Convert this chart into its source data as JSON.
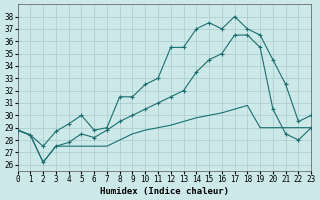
{
  "xlabel": "Humidex (Indice chaleur)",
  "ylabel": "",
  "background_color": "#cce8e8",
  "grid_color": "#aacccc",
  "line_color": "#1a7070",
  "xlim": [
    0,
    23
  ],
  "ylim": [
    25.5,
    39
  ],
  "yticks": [
    26,
    27,
    28,
    29,
    30,
    31,
    32,
    33,
    34,
    35,
    36,
    37,
    38
  ],
  "xticks": [
    0,
    1,
    2,
    3,
    4,
    5,
    6,
    7,
    8,
    9,
    10,
    11,
    12,
    13,
    14,
    15,
    16,
    17,
    18,
    19,
    20,
    21,
    22,
    23
  ],
  "series1_x": [
    0,
    1,
    2,
    3,
    4,
    5,
    6,
    7,
    8,
    9,
    10,
    11,
    12,
    13,
    14,
    15,
    16,
    17,
    18,
    19,
    20,
    21,
    22,
    23
  ],
  "series1_y": [
    28.8,
    28.4,
    27.5,
    28.7,
    29.3,
    30.0,
    28.8,
    29.0,
    31.5,
    31.5,
    32.5,
    33.0,
    35.5,
    35.5,
    37.0,
    37.5,
    37.0,
    38.0,
    37.0,
    36.5,
    34.5,
    32.5,
    29.5,
    30.0
  ],
  "series2_x": [
    0,
    1,
    2,
    3,
    4,
    5,
    6,
    7,
    8,
    9,
    10,
    11,
    12,
    13,
    14,
    15,
    16,
    17,
    18,
    19,
    20,
    21,
    22,
    23
  ],
  "series2_y": [
    28.8,
    28.4,
    26.2,
    27.5,
    27.5,
    27.5,
    27.5,
    27.5,
    28.0,
    28.5,
    28.8,
    29.0,
    29.2,
    29.5,
    29.8,
    30.0,
    30.2,
    30.5,
    30.8,
    29.0,
    29.0,
    29.0,
    29.0,
    29.0
  ],
  "series3_x": [
    0,
    1,
    2,
    3,
    4,
    5,
    6,
    7,
    8,
    9,
    10,
    11,
    12,
    13,
    14,
    15,
    16,
    17,
    18,
    19,
    20,
    21,
    22,
    23
  ],
  "series3_y": [
    28.8,
    28.4,
    26.2,
    27.5,
    27.8,
    28.5,
    28.2,
    28.8,
    29.5,
    30.0,
    30.5,
    31.0,
    31.5,
    32.0,
    33.5,
    34.5,
    35.0,
    36.5,
    36.5,
    35.5,
    30.5,
    28.5,
    28.0,
    29.0
  ]
}
